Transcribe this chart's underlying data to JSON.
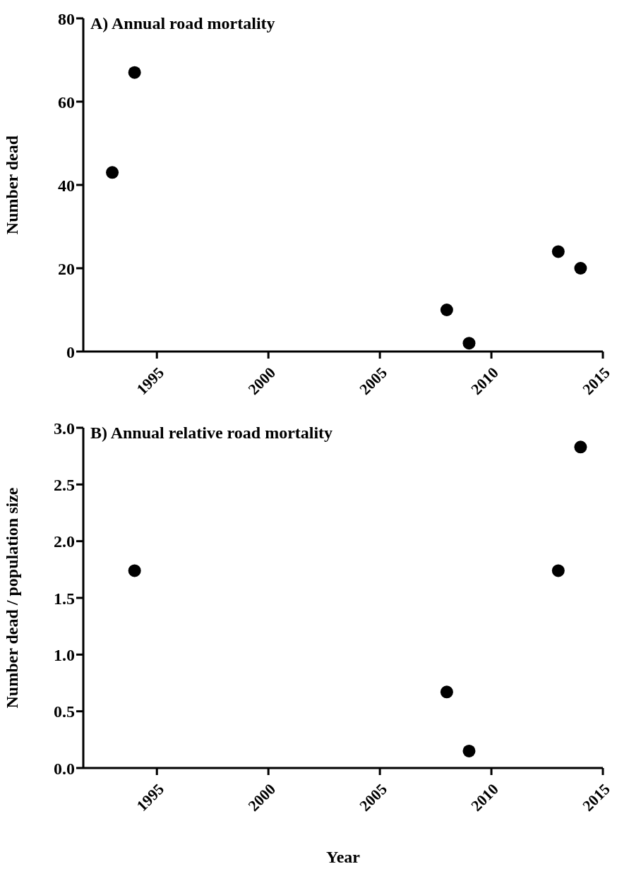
{
  "chart_data": [
    {
      "type": "scatter",
      "title": "A) Annual road mortality",
      "ylabel": "Number dead",
      "x": [
        1993,
        1994,
        2008,
        2009,
        2013,
        2014
      ],
      "series": [
        {
          "color": "#000000",
          "values": [
            43,
            67,
            10,
            2,
            24,
            20
          ]
        }
      ],
      "xlim": [
        1991.7,
        2015
      ],
      "xticks": [
        1995,
        2000,
        2005,
        2010,
        2015
      ],
      "ylim": [
        0,
        80
      ],
      "yticks": [
        0,
        20,
        40,
        60,
        80
      ],
      "marker": "circle",
      "grid": false
    },
    {
      "type": "scatter",
      "title": "B) Annual relative road mortality",
      "ylabel": "Number dead / population size",
      "xlabel": "Year",
      "x": [
        1994,
        2008,
        2009,
        2013,
        2014
      ],
      "series": [
        {
          "color": "#000000",
          "values": [
            1.74,
            0.67,
            0.15,
            1.74,
            2.83
          ]
        }
      ],
      "xlim": [
        1991.7,
        2015
      ],
      "xticks": [
        1995,
        2000,
        2005,
        2010,
        2015
      ],
      "ylim": [
        0,
        3
      ],
      "yticks": [
        {
          "value": 0,
          "label": "0.0"
        },
        {
          "value": 0.5,
          "label": "0.5"
        },
        {
          "value": 1,
          "label": "1.0"
        },
        {
          "value": 1.5,
          "label": "1.5"
        },
        {
          "value": 2,
          "label": "2.0"
        },
        {
          "value": 2.5,
          "label": "2.5"
        },
        {
          "value": 3,
          "label": "3.0"
        }
      ],
      "marker": "circle",
      "grid": false
    }
  ]
}
